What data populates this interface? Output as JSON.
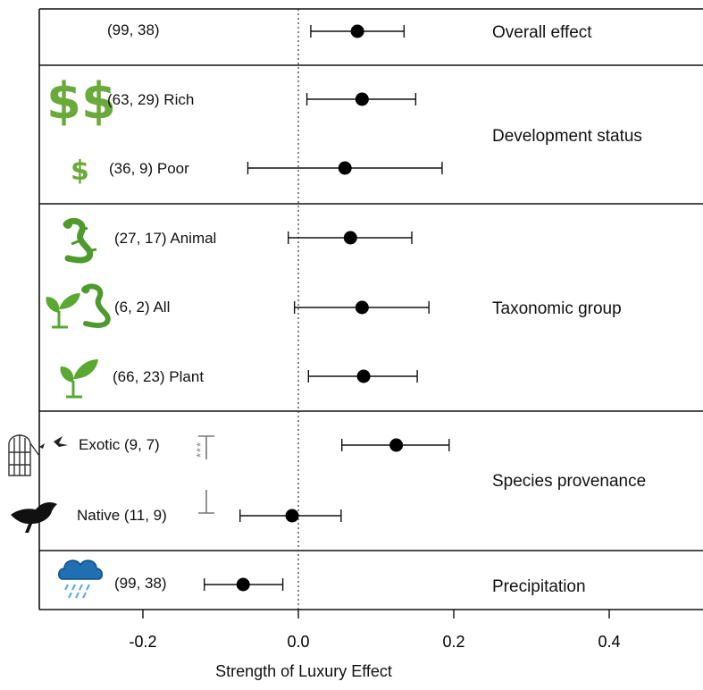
{
  "chart_data": {
    "type": "forest",
    "xlabel": "Strength of Luxury Effect",
    "xlim": [
      -0.33,
      0.52
    ],
    "xticks": [
      -0.2,
      0.0,
      0.2,
      0.4
    ],
    "xtick_labels": [
      "-0.2",
      "0.0",
      "0.2",
      "0.4"
    ],
    "reference_line": 0.0,
    "groups": [
      {
        "name": "Overall effect",
        "rows": [
          {
            "label": "(99, 38)",
            "estimate": 0.076,
            "ci_low": 0.016,
            "ci_high": 0.136
          }
        ]
      },
      {
        "name": "Development status",
        "rows": [
          {
            "label": "(63, 29)  Rich",
            "estimate": 0.082,
            "ci_low": 0.011,
            "ci_high": 0.151
          },
          {
            "label": "(36, 9)  Poor",
            "estimate": 0.06,
            "ci_low": -0.065,
            "ci_high": 0.185
          }
        ]
      },
      {
        "name": "Taxonomic group",
        "rows": [
          {
            "label": "(27, 17)  Animal",
            "estimate": 0.067,
            "ci_low": -0.013,
            "ci_high": 0.146
          },
          {
            "label": "(6, 2)  All",
            "estimate": 0.082,
            "ci_low": -0.005,
            "ci_high": 0.168
          },
          {
            "label": "(66, 23)  Plant",
            "estimate": 0.084,
            "ci_low": 0.013,
            "ci_high": 0.153
          }
        ]
      },
      {
        "name": "Species provenance",
        "rows": [
          {
            "label": "Exotic (9, 7)",
            "estimate": 0.126,
            "ci_low": 0.056,
            "ci_high": 0.194
          },
          {
            "label": "Native (11, 9)",
            "estimate": -0.008,
            "ci_low": -0.075,
            "ci_high": 0.055
          }
        ],
        "significance": "***"
      },
      {
        "name": "Precipitation",
        "rows": [
          {
            "label": "(99, 38)",
            "estimate": -0.071,
            "ci_low": -0.121,
            "ci_high": -0.02
          }
        ]
      }
    ]
  },
  "icons": {
    "rich": "double-dollar-icon",
    "poor": "dollar-icon",
    "animal": "lizard-icon",
    "all": "plant-and-lizard-icon",
    "plant": "plant-sprout-icon",
    "exotic": "birdcage-icon",
    "native": "bird-silhouette-icon",
    "precipitation": "rain-cloud-icon"
  },
  "colors": {
    "dollar": "#6aaa3a",
    "lizard": "#4f9a2e",
    "plant": "#5aa832",
    "cloud": "#1f6fb2",
    "bird": "#111111"
  }
}
